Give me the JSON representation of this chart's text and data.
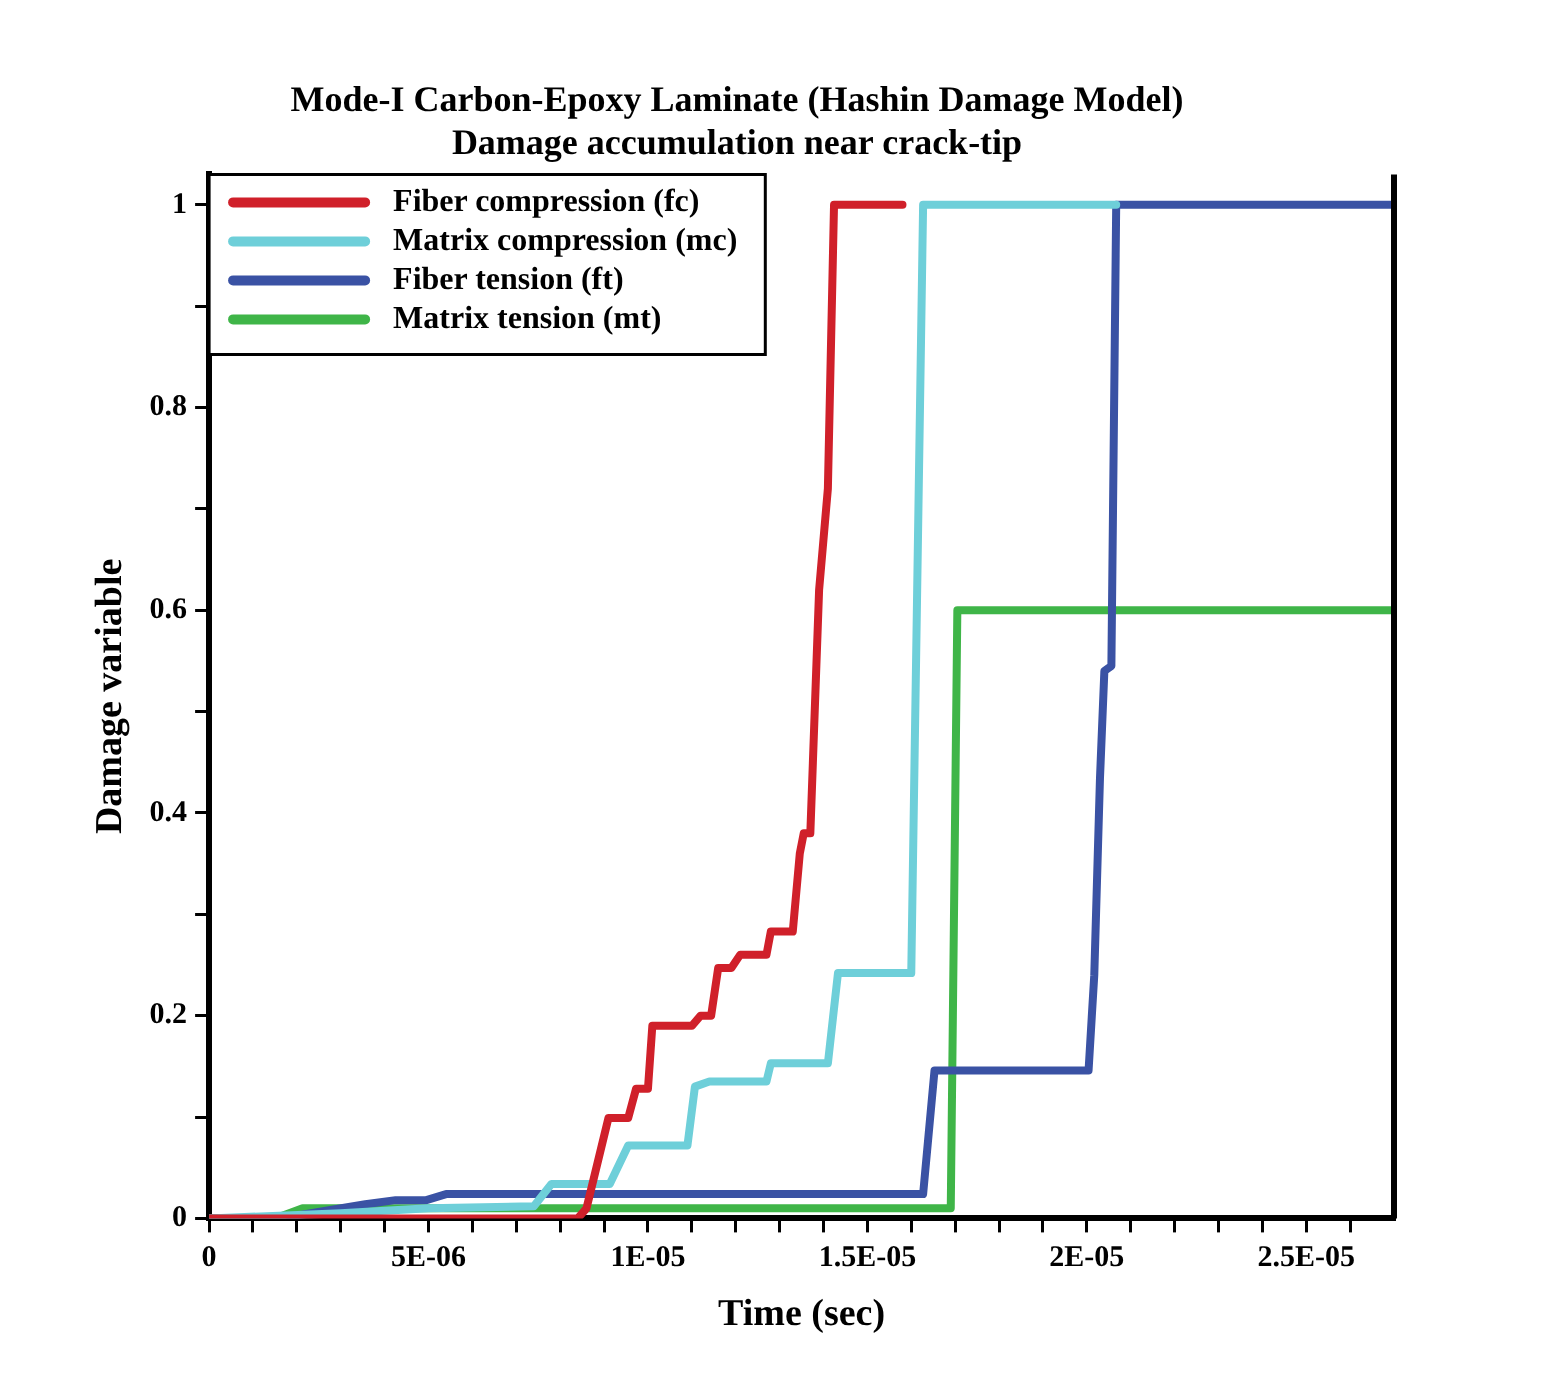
{
  "chart_data": {
    "type": "line",
    "title": "Mode-I Carbon-Epoxy Laminate (Hashin Damage Model)",
    "subtitle": "Damage accumulation near crack-tip",
    "xlabel": "Time (sec)",
    "ylabel": "Damage variable",
    "xlim": [
      0,
      2.7e-05
    ],
    "xticks": [
      0,
      {
        "value": 1e-06,
        "label": null
      },
      {
        "value": 2e-06,
        "label": null
      },
      {
        "value": 3e-06,
        "label": null
      },
      {
        "value": 4e-06,
        "label": null
      },
      {
        "value": 5e-06,
        "label": "5E-06"
      },
      {
        "value": 6e-06,
        "label": null
      },
      {
        "value": 7e-06,
        "label": null
      },
      {
        "value": 8e-06,
        "label": null
      },
      {
        "value": 9e-06,
        "label": null
      },
      {
        "value": 1e-05,
        "label": "1E-05"
      },
      {
        "value": 1.1e-05,
        "label": null
      },
      {
        "value": 1.2e-05,
        "label": null
      },
      {
        "value": 1.3e-05,
        "label": null
      },
      {
        "value": 1.4e-05,
        "label": null
      },
      {
        "value": 1.5e-05,
        "label": "1.5E-05"
      },
      {
        "value": 1.6e-05,
        "label": null
      },
      {
        "value": 1.7e-05,
        "label": null
      },
      {
        "value": 1.8e-05,
        "label": null
      },
      {
        "value": 1.9e-05,
        "label": null
      },
      {
        "value": 2e-05,
        "label": "2E-05"
      },
      {
        "value": 2.1e-05,
        "label": null
      },
      {
        "value": 2.2e-05,
        "label": null
      },
      {
        "value": 2.3e-05,
        "label": null
      },
      {
        "value": 2.4e-05,
        "label": null
      },
      {
        "value": 2.5e-05,
        "label": "2.5E-05"
      },
      {
        "value": 2.6e-05,
        "label": null
      }
    ],
    "ylim": [
      0,
      1.03
    ],
    "yticks": [
      0,
      {
        "value": 0.1,
        "label": null
      },
      0.2,
      {
        "value": 0.3,
        "label": null
      },
      0.4,
      {
        "value": 0.5,
        "label": null
      },
      0.6,
      {
        "value": 0.7,
        "label": null
      },
      0.8,
      {
        "value": 0.9,
        "label": null
      },
      1
    ],
    "grid": false,
    "legend": "top left",
    "series": [
      {
        "name": "Fiber compression (fc)",
        "color": "#d0202a",
        "x": [
          0,
          8.4e-06,
          8.6e-06,
          9.1e-06,
          9.55e-06,
          9.73e-06,
          1e-05,
          1.01e-05,
          1.1e-05,
          1.12e-05,
          1.144e-05,
          1.16e-05,
          1.19e-05,
          1.21e-05,
          1.27e-05,
          1.28e-05,
          1.33e-05,
          1.346e-05,
          1.355e-05,
          1.37e-05,
          1.39e-05,
          1.41e-05,
          1.424e-05,
          1.58e-05
        ],
        "values": [
          0,
          0,
          0.01,
          0.099,
          0.099,
          0.128,
          0.128,
          0.19,
          0.19,
          0.2,
          0.2,
          0.247,
          0.247,
          0.26,
          0.26,
          0.283,
          0.283,
          0.36,
          0.38,
          0.38,
          0.62,
          0.72,
          1,
          1
        ]
      },
      {
        "name": "Matrix compression (mc)",
        "color": "#6ecfd9",
        "x": [
          0,
          3e-06,
          5e-06,
          7.4e-06,
          7.8e-06,
          9.13e-06,
          9.55e-06,
          1.09e-05,
          1.107e-05,
          1.14e-05,
          1.27e-05,
          1.28e-05,
          1.41e-05,
          1.433e-05,
          1.6e-05,
          1.627e-05,
          2.067e-05
        ],
        "values": [
          0,
          0.005,
          0.01,
          0.012,
          0.034,
          0.034,
          0.072,
          0.072,
          0.13,
          0.135,
          0.135,
          0.153,
          0.153,
          0.242,
          0.242,
          1,
          1
        ]
      },
      {
        "name": "Fiber tension (ft)",
        "color": "#3a52a4",
        "x": [
          0,
          1.6e-06,
          3.56e-06,
          4.25e-06,
          4.95e-06,
          5.4e-06,
          1.627e-05,
          1.653e-05,
          2.004e-05,
          2.017e-05,
          2.03e-05,
          2.04e-05,
          2.056e-05,
          2.067e-05,
          2.7e-05
        ],
        "values": [
          0,
          0,
          0.014,
          0.018,
          0.018,
          0.024,
          0.024,
          0.146,
          0.146,
          0.24,
          0.434,
          0.54,
          0.545,
          1,
          1
        ]
      },
      {
        "name": "Matrix tension (mt)",
        "color": "#3fb548",
        "x": [
          0,
          1.5e-06,
          2.13e-06,
          1.69e-05,
          1.705e-05,
          2.7e-05
        ],
        "values": [
          0,
          0,
          0.01,
          0.01,
          0.6,
          0.6
        ]
      }
    ]
  }
}
